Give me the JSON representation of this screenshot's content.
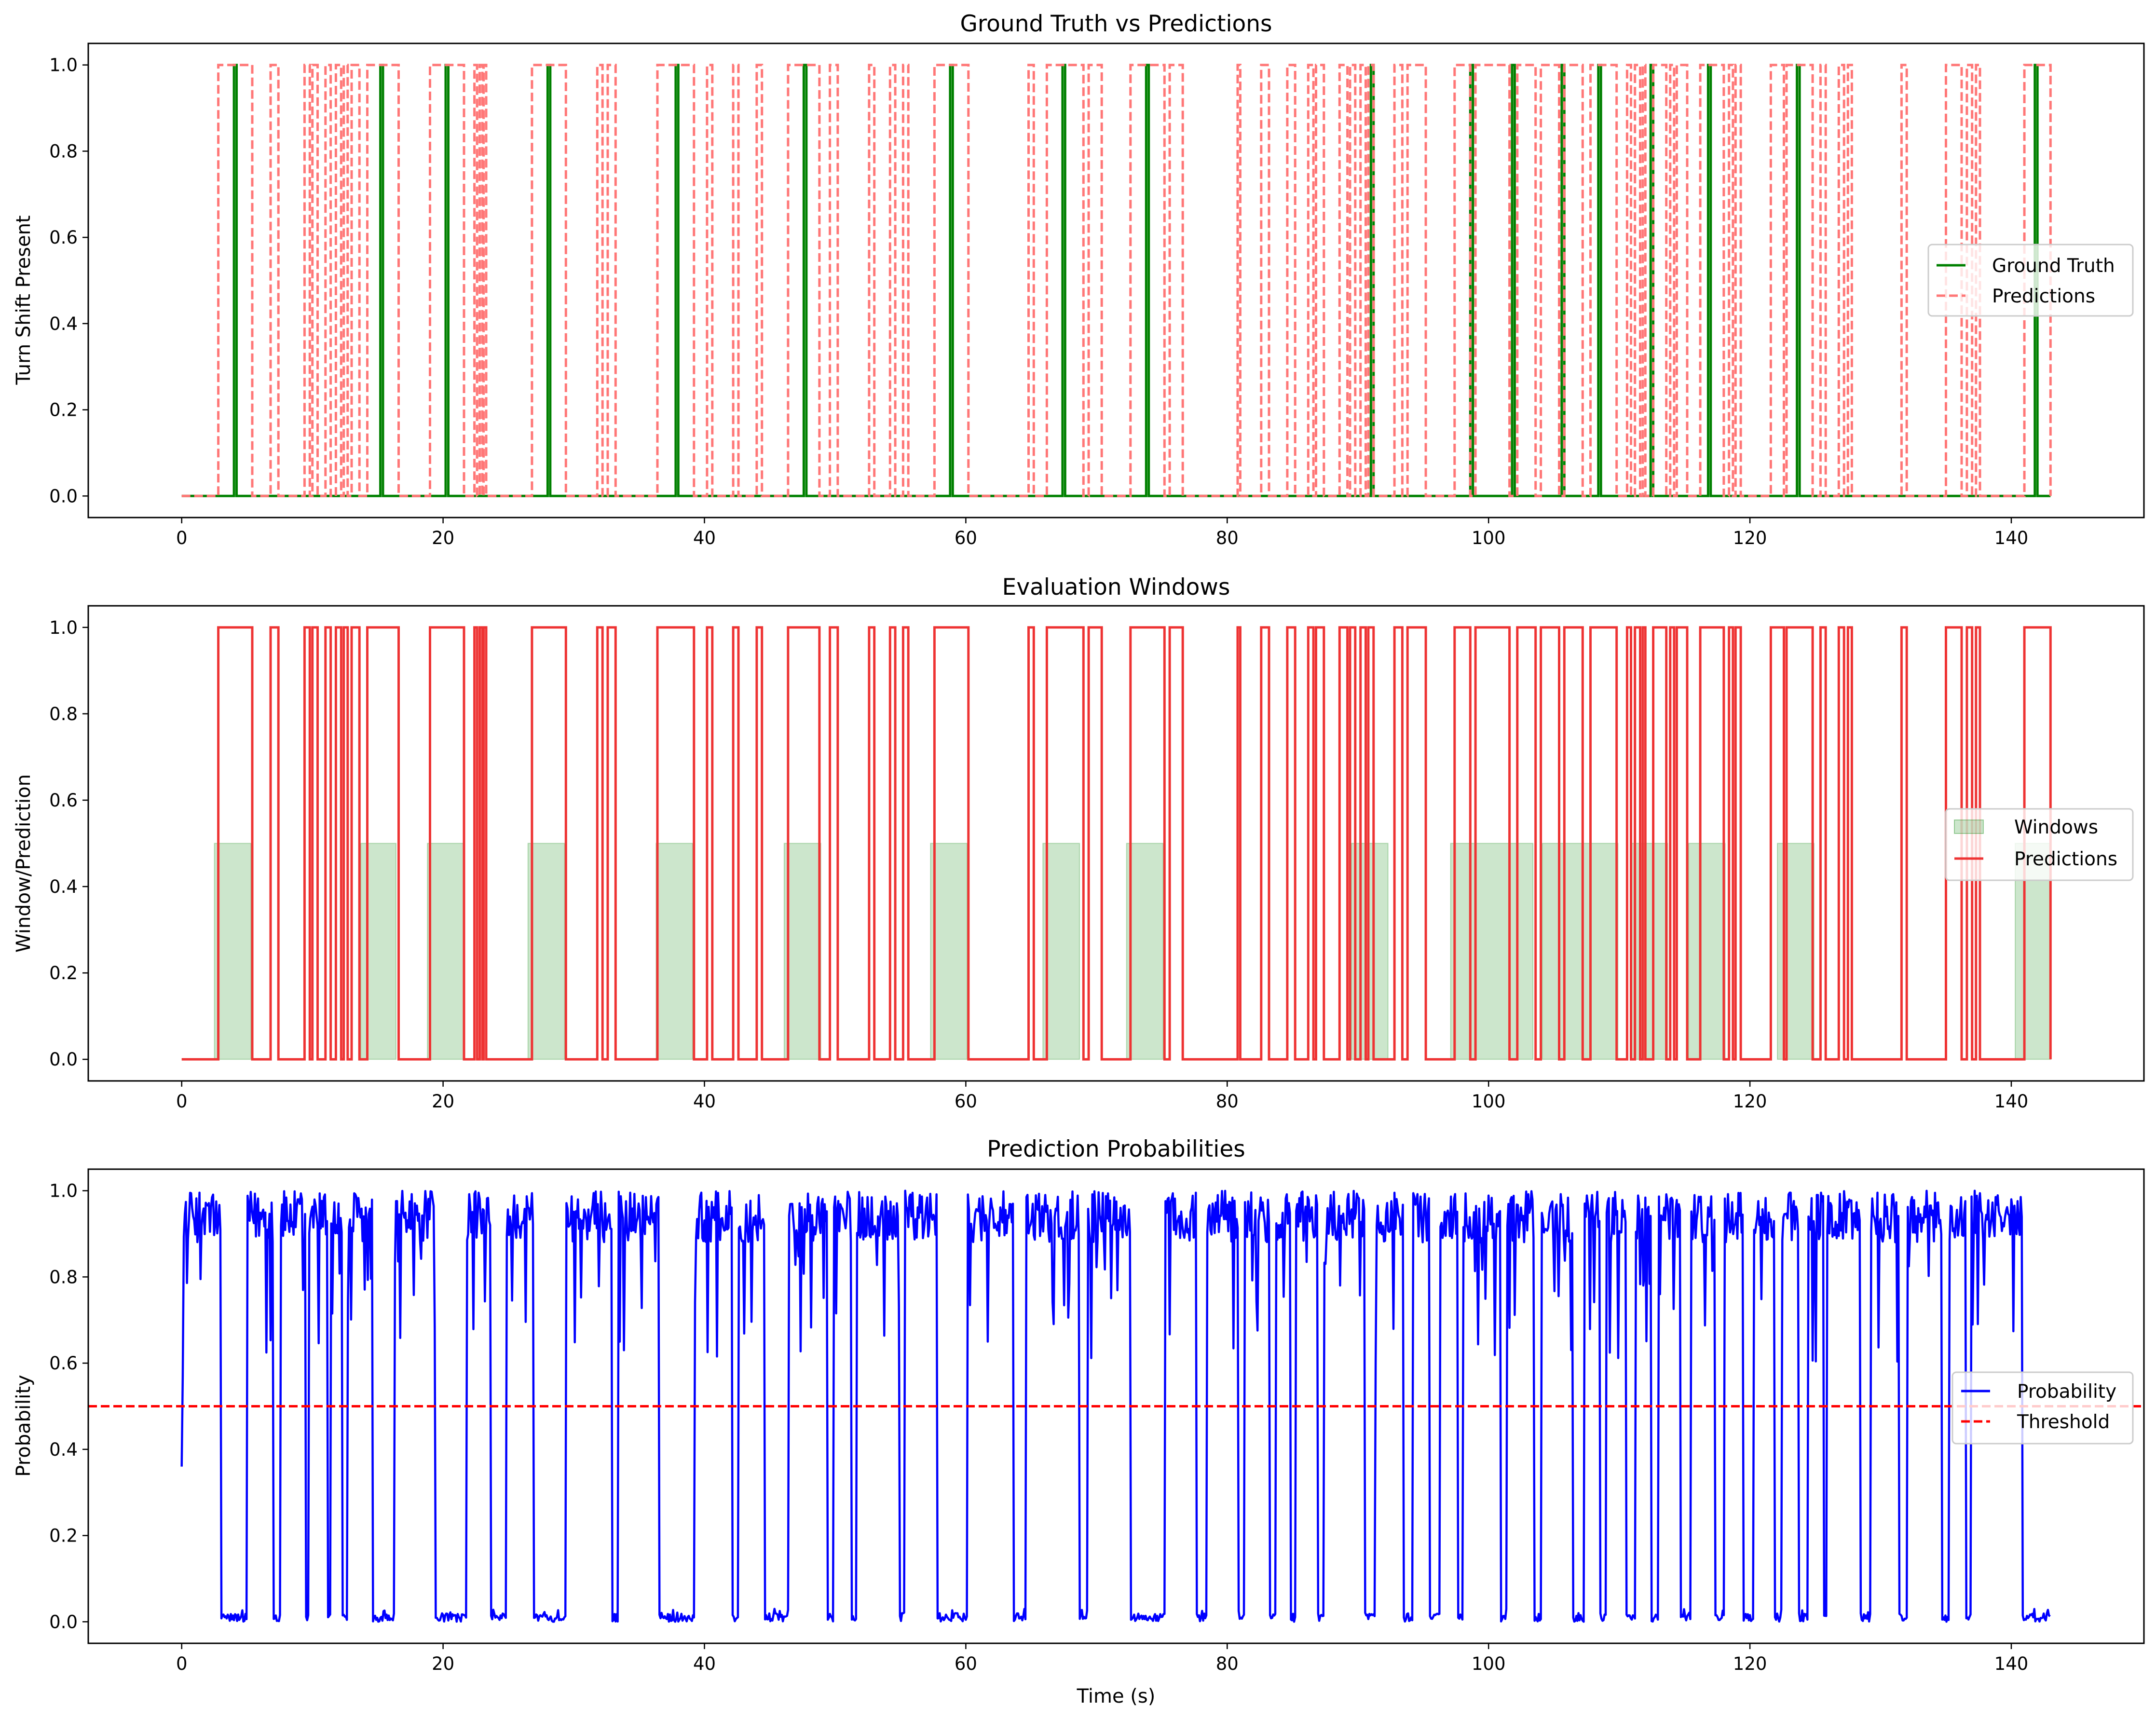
{
  "chart_data": [
    {
      "type": "line",
      "title": "Ground Truth vs Predictions",
      "xlabel": "",
      "ylabel": "Turn Shift Present",
      "xlim": [
        -7.15,
        150.15
      ],
      "ylim": [
        -0.05,
        1.05
      ],
      "x_ticks": [
        0,
        20,
        40,
        60,
        80,
        100,
        120,
        140
      ],
      "y_ticks": [
        0.0,
        0.2,
        0.4,
        0.6,
        0.8,
        1.0
      ],
      "x_tick_labels": [
        "0",
        "20",
        "40",
        "60",
        "80",
        "100",
        "120",
        "140"
      ],
      "y_tick_labels": [
        "0.0",
        "0.2",
        "0.4",
        "0.6",
        "0.8",
        "1.0"
      ],
      "legend": "center-right",
      "grid": false,
      "series": [
        {
          "name": "Ground Truth",
          "color": "#008000",
          "style": "solid",
          "kind": "pulses",
          "x_range": [
            0,
            143
          ],
          "pulses": [
            [
              4.0,
              4.2
            ],
            [
              15.2,
              15.4
            ],
            [
              20.2,
              20.4
            ],
            [
              28.0,
              28.2
            ],
            [
              37.8,
              38.0
            ],
            [
              47.6,
              47.8
            ],
            [
              58.8,
              59.0
            ],
            [
              67.4,
              67.6
            ],
            [
              73.8,
              74.0
            ],
            [
              91.0,
              91.2
            ],
            [
              98.6,
              98.8
            ],
            [
              101.8,
              102.0
            ],
            [
              105.6,
              105.8
            ],
            [
              108.4,
              108.6
            ],
            [
              112.4,
              112.6
            ],
            [
              116.8,
              117.0
            ],
            [
              123.6,
              123.8
            ],
            [
              141.8,
              142.0
            ]
          ]
        },
        {
          "name": "Predictions",
          "color": "#ff7777",
          "style": "dashed",
          "kind": "pulses",
          "x_range": [
            0,
            143
          ],
          "pulses": [
            [
              2.8,
              5.4
            ],
            [
              6.8,
              7.4
            ],
            [
              9.4,
              9.8
            ],
            [
              10.0,
              10.4
            ],
            [
              11.0,
              11.4
            ],
            [
              11.8,
              12.2
            ],
            [
              12.4,
              12.7
            ],
            [
              13.0,
              13.6
            ],
            [
              14.2,
              16.6
            ],
            [
              19.0,
              21.6
            ],
            [
              22.4,
              22.6
            ],
            [
              22.8,
              23.0
            ],
            [
              23.1,
              23.3
            ],
            [
              26.8,
              29.4
            ],
            [
              31.8,
              32.2
            ],
            [
              32.6,
              33.2
            ],
            [
              36.4,
              39.2
            ],
            [
              40.2,
              40.6
            ],
            [
              42.2,
              42.6
            ],
            [
              44.0,
              44.4
            ],
            [
              46.4,
              48.8
            ],
            [
              49.6,
              50.2
            ],
            [
              52.6,
              53.0
            ],
            [
              54.2,
              54.6
            ],
            [
              55.2,
              55.6
            ],
            [
              57.6,
              60.2
            ],
            [
              64.8,
              65.2
            ],
            [
              66.2,
              69.0
            ],
            [
              69.4,
              70.4
            ],
            [
              72.6,
              75.2
            ],
            [
              75.6,
              76.6
            ],
            [
              80.8,
              81.0
            ],
            [
              82.6,
              83.2
            ],
            [
              84.6,
              85.2
            ],
            [
              86.2,
              86.6
            ],
            [
              86.8,
              87.4
            ],
            [
              88.6,
              89.2
            ],
            [
              89.4,
              89.8
            ],
            [
              90.2,
              90.6
            ],
            [
              90.8,
              91.2
            ],
            [
              92.8,
              93.4
            ],
            [
              93.8,
              95.2
            ],
            [
              97.4,
              98.6
            ],
            [
              99.0,
              101.6
            ],
            [
              102.2,
              103.6
            ],
            [
              104.0,
              105.4
            ],
            [
              105.8,
              107.2
            ],
            [
              107.8,
              109.8
            ],
            [
              110.6,
              110.9
            ],
            [
              111.2,
              111.6
            ],
            [
              111.8,
              112.0
            ],
            [
              112.6,
              113.6
            ],
            [
              113.9,
              114.2
            ],
            [
              114.4,
              115.2
            ],
            [
              116.2,
              118.0
            ],
            [
              118.4,
              118.7
            ],
            [
              118.9,
              119.3
            ],
            [
              121.6,
              122.6
            ],
            [
              122.8,
              124.8
            ],
            [
              125.4,
              125.8
            ],
            [
              126.8,
              127.2
            ],
            [
              127.5,
              127.8
            ],
            [
              131.6,
              132.0
            ],
            [
              135.0,
              136.2
            ],
            [
              136.6,
              137.0
            ],
            [
              137.3,
              137.6
            ],
            [
              141.0,
              143.0
            ]
          ]
        }
      ]
    },
    {
      "type": "line",
      "title": "Evaluation Windows",
      "xlabel": "",
      "ylabel": "Window/Prediction",
      "xlim": [
        -7.15,
        150.15
      ],
      "ylim": [
        -0.05,
        1.05
      ],
      "x_ticks": [
        0,
        20,
        40,
        60,
        80,
        100,
        120,
        140
      ],
      "y_ticks": [
        0.0,
        0.2,
        0.4,
        0.6,
        0.8,
        1.0
      ],
      "x_tick_labels": [
        "0",
        "20",
        "40",
        "60",
        "80",
        "100",
        "120",
        "140"
      ],
      "y_tick_labels": [
        "0.0",
        "0.2",
        "0.4",
        "0.6",
        "0.8",
        "1.0"
      ],
      "legend": "center-right",
      "grid": false,
      "series": [
        {
          "name": "Windows",
          "color": "#008000",
          "kind": "filled-windows",
          "height": 0.5,
          "windows": [
            [
              2.5,
              5.3
            ],
            [
              13.7,
              16.4
            ],
            [
              18.8,
              21.6
            ],
            [
              26.5,
              29.3
            ],
            [
              36.3,
              39.1
            ],
            [
              46.1,
              48.9
            ],
            [
              57.3,
              60.1
            ],
            [
              65.9,
              68.7
            ],
            [
              72.3,
              75.1
            ],
            [
              89.5,
              92.3
            ],
            [
              97.1,
              103.4
            ],
            [
              104.1,
              109.9
            ],
            [
              110.9,
              113.7
            ],
            [
              115.3,
              118.1
            ],
            [
              122.1,
              124.9
            ],
            [
              140.3,
              143.0
            ]
          ]
        },
        {
          "name": "Predictions",
          "color": "#ee3333",
          "style": "solid",
          "kind": "pulses",
          "x_range": [
            0,
            143
          ],
          "pulses": [
            [
              2.8,
              5.4
            ],
            [
              6.8,
              7.4
            ],
            [
              9.4,
              9.8
            ],
            [
              10.0,
              10.4
            ],
            [
              11.0,
              11.4
            ],
            [
              11.8,
              12.2
            ],
            [
              12.4,
              12.7
            ],
            [
              13.0,
              13.6
            ],
            [
              14.2,
              16.6
            ],
            [
              19.0,
              21.6
            ],
            [
              22.4,
              22.6
            ],
            [
              22.8,
              23.0
            ],
            [
              23.1,
              23.3
            ],
            [
              26.8,
              29.4
            ],
            [
              31.8,
              32.2
            ],
            [
              32.6,
              33.2
            ],
            [
              36.4,
              39.2
            ],
            [
              40.2,
              40.6
            ],
            [
              42.2,
              42.6
            ],
            [
              44.0,
              44.4
            ],
            [
              46.4,
              48.8
            ],
            [
              49.6,
              50.2
            ],
            [
              52.6,
              53.0
            ],
            [
              54.2,
              54.6
            ],
            [
              55.2,
              55.6
            ],
            [
              57.6,
              60.2
            ],
            [
              64.8,
              65.2
            ],
            [
              66.2,
              69.0
            ],
            [
              69.4,
              70.4
            ],
            [
              72.6,
              75.2
            ],
            [
              75.6,
              76.6
            ],
            [
              80.8,
              81.0
            ],
            [
              82.6,
              83.2
            ],
            [
              84.6,
              85.2
            ],
            [
              86.2,
              86.6
            ],
            [
              86.8,
              87.4
            ],
            [
              88.6,
              89.2
            ],
            [
              89.4,
              89.8
            ],
            [
              90.2,
              90.6
            ],
            [
              90.8,
              91.2
            ],
            [
              92.8,
              93.4
            ],
            [
              93.8,
              95.2
            ],
            [
              97.4,
              98.6
            ],
            [
              99.0,
              101.6
            ],
            [
              102.2,
              103.6
            ],
            [
              104.0,
              105.4
            ],
            [
              105.8,
              107.2
            ],
            [
              107.8,
              109.8
            ],
            [
              110.6,
              110.9
            ],
            [
              111.2,
              111.6
            ],
            [
              111.8,
              112.0
            ],
            [
              112.6,
              113.6
            ],
            [
              113.9,
              114.2
            ],
            [
              114.4,
              115.2
            ],
            [
              116.2,
              118.0
            ],
            [
              118.4,
              118.7
            ],
            [
              118.9,
              119.3
            ],
            [
              121.6,
              122.6
            ],
            [
              122.8,
              124.8
            ],
            [
              125.4,
              125.8
            ],
            [
              126.8,
              127.2
            ],
            [
              127.5,
              127.8
            ],
            [
              131.6,
              132.0
            ],
            [
              135.0,
              136.2
            ],
            [
              136.6,
              137.0
            ],
            [
              137.3,
              137.6
            ],
            [
              141.0,
              143.0
            ]
          ]
        }
      ]
    },
    {
      "type": "line",
      "title": "Prediction Probabilities",
      "xlabel": "Time (s)",
      "ylabel": "Probability",
      "xlim": [
        -7.15,
        150.15
      ],
      "ylim": [
        -0.05,
        1.05
      ],
      "x_ticks": [
        0,
        20,
        40,
        60,
        80,
        100,
        120,
        140
      ],
      "y_ticks": [
        0.0,
        0.2,
        0.4,
        0.6,
        0.8,
        1.0
      ],
      "x_tick_labels": [
        "0",
        "20",
        "40",
        "60",
        "80",
        "100",
        "120",
        "140"
      ],
      "y_tick_labels": [
        "0.0",
        "0.2",
        "0.4",
        "0.6",
        "0.8",
        "1.0"
      ],
      "legend": "center-right",
      "grid": false,
      "series": [
        {
          "name": "Probability",
          "color": "#0000ff",
          "style": "solid",
          "kind": "sampled-curve",
          "x_range": [
            0,
            143
          ],
          "high_band": [
            0.6,
            1.0
          ],
          "low_band": [
            0.0,
            0.02
          ],
          "high_intervals": [
            [
              0.0,
              3.0
            ],
            [
              5.0,
              7.0
            ],
            [
              7.6,
              9.5
            ],
            [
              9.7,
              11.2
            ],
            [
              11.4,
              12.3
            ],
            [
              12.7,
              14.6
            ],
            [
              16.3,
              19.4
            ],
            [
              21.8,
              23.6
            ],
            [
              24.8,
              26.9
            ],
            [
              29.4,
              32.9
            ],
            [
              33.4,
              36.5
            ],
            [
              39.2,
              42.1
            ],
            [
              42.6,
              44.6
            ],
            [
              46.4,
              49.4
            ],
            [
              49.9,
              51.2
            ],
            [
              51.6,
              54.9
            ],
            [
              55.3,
              57.8
            ],
            [
              60.1,
              63.6
            ],
            [
              64.6,
              68.7
            ],
            [
              69.3,
              72.6
            ],
            [
              75.2,
              77.6
            ],
            [
              78.4,
              80.8
            ],
            [
              81.3,
              83.2
            ],
            [
              83.7,
              84.8
            ],
            [
              85.2,
              86.9
            ],
            [
              87.4,
              90.5
            ],
            [
              91.3,
              93.5
            ],
            [
              94.2,
              95.5
            ],
            [
              96.3,
              97.6
            ],
            [
              98.0,
              100.9
            ],
            [
              101.4,
              103.5
            ],
            [
              104.0,
              106.4
            ],
            [
              107.3,
              108.5
            ],
            [
              109.0,
              110.5
            ],
            [
              111.2,
              112.4
            ],
            [
              113.0,
              114.7
            ],
            [
              115.5,
              117.3
            ],
            [
              118.0,
              119.5
            ],
            [
              120.3,
              121.9
            ],
            [
              122.4,
              123.7
            ],
            [
              124.4,
              125.6
            ],
            [
              125.9,
              128.4
            ],
            [
              129.2,
              131.4
            ],
            [
              132.0,
              134.7
            ],
            [
              135.2,
              136.5
            ],
            [
              136.9,
              140.8
            ]
          ]
        },
        {
          "name": "Threshold",
          "color": "#ff0000",
          "style": "dashed",
          "kind": "hline",
          "y": 0.5
        }
      ]
    }
  ]
}
